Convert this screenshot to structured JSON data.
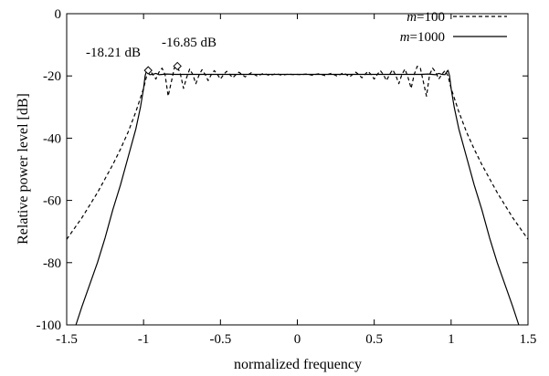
{
  "chart_data": {
    "type": "line",
    "title": "",
    "xlabel": "normalized frequency",
    "ylabel": "Relative power level [dB]",
    "xlim": [
      -1.5,
      1.5
    ],
    "ylim": [
      -100,
      0
    ],
    "x_ticks": [
      -1.5,
      -1,
      -0.5,
      0,
      0.5,
      1,
      1.5
    ],
    "x_tick_labels": [
      "-1.5",
      "-1",
      "-0.5",
      "0",
      "0.5",
      "1",
      "1.5"
    ],
    "y_ticks": [
      0,
      -20,
      -40,
      -60,
      -80,
      -100
    ],
    "y_tick_labels": [
      "0",
      "-20",
      "-40",
      "-60",
      "-80",
      "-100"
    ],
    "grid": false,
    "legend_position": "top-right",
    "series": [
      {
        "name_prefix": "m",
        "name_suffix": "=100",
        "style": "dashed",
        "color": "#000000",
        "points": [
          [
            -1.5,
            -72.5
          ],
          [
            -1.45,
            -69.0
          ],
          [
            -1.4,
            -65.5
          ],
          [
            -1.35,
            -61.5
          ],
          [
            -1.3,
            -57.5
          ],
          [
            -1.25,
            -53.0
          ],
          [
            -1.2,
            -48.5
          ],
          [
            -1.15,
            -43.5
          ],
          [
            -1.1,
            -38.0
          ],
          [
            -1.05,
            -31.5
          ],
          [
            -1.0,
            -24.0
          ],
          [
            -0.98,
            -20.0
          ],
          [
            -0.96,
            -18.3
          ],
          [
            -0.94,
            -19.5
          ],
          [
            -0.92,
            -21.0
          ],
          [
            -0.9,
            -18.8
          ],
          [
            -0.88,
            -17.5
          ],
          [
            -0.86,
            -19.6
          ],
          [
            -0.84,
            -26.5
          ],
          [
            -0.82,
            -22.0
          ],
          [
            -0.8,
            -17.5
          ],
          [
            -0.78,
            -16.9
          ],
          [
            -0.76,
            -19.5
          ],
          [
            -0.74,
            -24.0
          ],
          [
            -0.72,
            -20.5
          ],
          [
            -0.7,
            -17.8
          ],
          [
            -0.68,
            -19.5
          ],
          [
            -0.66,
            -22.5
          ],
          [
            -0.64,
            -19.8
          ],
          [
            -0.62,
            -18.0
          ],
          [
            -0.6,
            -19.5
          ],
          [
            -0.58,
            -21.5
          ],
          [
            -0.56,
            -19.6
          ],
          [
            -0.54,
            -18.3
          ],
          [
            -0.52,
            -19.5
          ],
          [
            -0.5,
            -21.0
          ],
          [
            -0.48,
            -19.6
          ],
          [
            -0.46,
            -18.5
          ],
          [
            -0.44,
            -19.5
          ],
          [
            -0.42,
            -20.6
          ],
          [
            -0.4,
            -19.6
          ],
          [
            -0.38,
            -18.8
          ],
          [
            -0.36,
            -19.5
          ],
          [
            -0.34,
            -20.3
          ],
          [
            -0.32,
            -19.6
          ],
          [
            -0.3,
            -19.0
          ],
          [
            -0.28,
            -19.5
          ],
          [
            -0.26,
            -20.1
          ],
          [
            -0.24,
            -19.6
          ],
          [
            -0.22,
            -19.2
          ],
          [
            -0.2,
            -19.5
          ],
          [
            -0.18,
            -19.9
          ],
          [
            -0.16,
            -19.6
          ],
          [
            -0.14,
            -19.3
          ],
          [
            -0.12,
            -19.5
          ],
          [
            -0.1,
            -19.8
          ],
          [
            -0.08,
            -19.6
          ],
          [
            -0.06,
            -19.4
          ],
          [
            -0.04,
            -19.5
          ],
          [
            -0.02,
            -19.6
          ],
          [
            0.0,
            -19.5
          ],
          [
            0.02,
            -19.6
          ],
          [
            0.04,
            -19.5
          ],
          [
            0.06,
            -19.4
          ],
          [
            0.08,
            -19.6
          ],
          [
            0.1,
            -19.8
          ],
          [
            0.12,
            -19.5
          ],
          [
            0.14,
            -19.3
          ],
          [
            0.16,
            -19.6
          ],
          [
            0.18,
            -19.9
          ],
          [
            0.2,
            -19.5
          ],
          [
            0.22,
            -19.2
          ],
          [
            0.24,
            -19.6
          ],
          [
            0.26,
            -20.1
          ],
          [
            0.28,
            -19.5
          ],
          [
            0.3,
            -19.0
          ],
          [
            0.32,
            -19.6
          ],
          [
            0.34,
            -20.3
          ],
          [
            0.36,
            -19.5
          ],
          [
            0.38,
            -18.8
          ],
          [
            0.4,
            -19.6
          ],
          [
            0.42,
            -20.6
          ],
          [
            0.44,
            -19.5
          ],
          [
            0.46,
            -18.5
          ],
          [
            0.48,
            -19.6
          ],
          [
            0.5,
            -21.0
          ],
          [
            0.52,
            -19.5
          ],
          [
            0.54,
            -18.3
          ],
          [
            0.56,
            -19.6
          ],
          [
            0.58,
            -21.5
          ],
          [
            0.6,
            -19.5
          ],
          [
            0.62,
            -18.0
          ],
          [
            0.64,
            -19.8
          ],
          [
            0.66,
            -22.5
          ],
          [
            0.68,
            -19.5
          ],
          [
            0.7,
            -17.8
          ],
          [
            0.72,
            -20.5
          ],
          [
            0.74,
            -24.0
          ],
          [
            0.76,
            -19.5
          ],
          [
            0.78,
            -16.9
          ],
          [
            0.8,
            -17.5
          ],
          [
            0.82,
            -22.0
          ],
          [
            0.84,
            -26.5
          ],
          [
            0.86,
            -19.6
          ],
          [
            0.88,
            -17.5
          ],
          [
            0.9,
            -18.8
          ],
          [
            0.92,
            -21.0
          ],
          [
            0.94,
            -19.5
          ],
          [
            0.96,
            -18.3
          ],
          [
            0.98,
            -20.0
          ],
          [
            1.0,
            -24.0
          ],
          [
            1.05,
            -31.5
          ],
          [
            1.1,
            -38.0
          ],
          [
            1.15,
            -43.5
          ],
          [
            1.2,
            -48.5
          ],
          [
            1.25,
            -53.0
          ],
          [
            1.3,
            -57.5
          ],
          [
            1.35,
            -61.5
          ],
          [
            1.4,
            -65.5
          ],
          [
            1.45,
            -69.0
          ],
          [
            1.5,
            -72.5
          ]
        ]
      },
      {
        "name_prefix": "m",
        "name_suffix": "=1000",
        "style": "solid",
        "color": "#000000",
        "points": [
          [
            -1.44,
            -100.0
          ],
          [
            -1.4,
            -94.0
          ],
          [
            -1.35,
            -87.0
          ],
          [
            -1.3,
            -80.0
          ],
          [
            -1.25,
            -72.0
          ],
          [
            -1.2,
            -63.0
          ],
          [
            -1.15,
            -55.0
          ],
          [
            -1.1,
            -46.0
          ],
          [
            -1.05,
            -37.0
          ],
          [
            -1.02,
            -30.0
          ],
          [
            -1.0,
            -24.0
          ],
          [
            -0.99,
            -20.0
          ],
          [
            -0.98,
            -18.2
          ],
          [
            -0.97,
            -18.8
          ],
          [
            -0.96,
            -19.6
          ],
          [
            -0.94,
            -19.5
          ],
          [
            -0.92,
            -19.2
          ],
          [
            -0.9,
            -19.6
          ],
          [
            -0.85,
            -19.4
          ],
          [
            -0.8,
            -19.5
          ],
          [
            -0.7,
            -19.5
          ],
          [
            -0.6,
            -19.5
          ],
          [
            -0.4,
            -19.5
          ],
          [
            -0.2,
            -19.5
          ],
          [
            0.0,
            -19.5
          ],
          [
            0.2,
            -19.5
          ],
          [
            0.4,
            -19.5
          ],
          [
            0.6,
            -19.5
          ],
          [
            0.7,
            -19.5
          ],
          [
            0.8,
            -19.5
          ],
          [
            0.85,
            -19.4
          ],
          [
            0.9,
            -19.6
          ],
          [
            0.92,
            -19.2
          ],
          [
            0.94,
            -19.5
          ],
          [
            0.96,
            -19.6
          ],
          [
            0.97,
            -18.8
          ],
          [
            0.98,
            -18.2
          ],
          [
            0.99,
            -20.0
          ],
          [
            1.0,
            -24.0
          ],
          [
            1.02,
            -30.0
          ],
          [
            1.05,
            -37.0
          ],
          [
            1.1,
            -46.0
          ],
          [
            1.15,
            -55.0
          ],
          [
            1.2,
            -63.0
          ],
          [
            1.25,
            -72.0
          ],
          [
            1.3,
            -80.0
          ],
          [
            1.35,
            -87.0
          ],
          [
            1.4,
            -94.0
          ],
          [
            1.44,
            -100.0
          ]
        ]
      }
    ],
    "annotations": [
      {
        "text": "-18.21 dB",
        "x": -0.97,
        "y": -18.21
      },
      {
        "text": "-16.85 dB",
        "x": -0.78,
        "y": -16.85
      }
    ]
  }
}
